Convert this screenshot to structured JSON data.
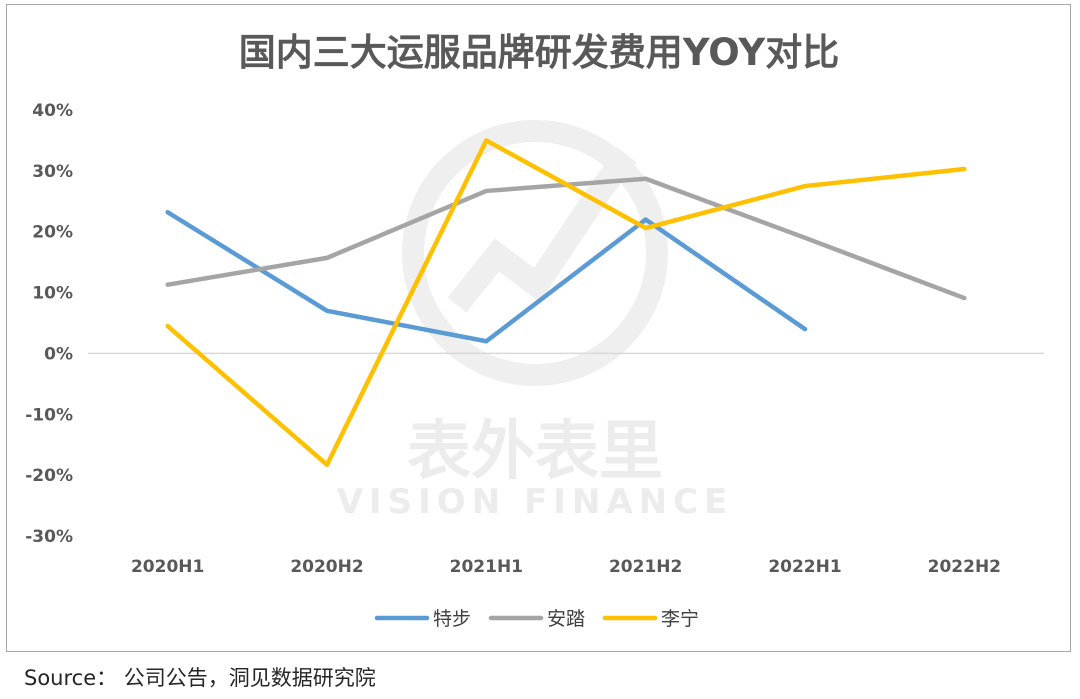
{
  "chart_data": {
    "type": "line",
    "title": "国内三大运服品牌研发费用YOY对比",
    "categories": [
      "2020H1",
      "2020H2",
      "2021H1",
      "2021H2",
      "2022H1",
      "2022H2"
    ],
    "ylim": [
      -30,
      40
    ],
    "ytick_labels": [
      "40%",
      "30%",
      "20%",
      "10%",
      "0%",
      "-10%",
      "-20%",
      "-30%"
    ],
    "ytick_values": [
      40,
      30,
      20,
      10,
      0,
      -10,
      -20,
      -30
    ],
    "grid": false,
    "legend_position": "bottom",
    "series": [
      {
        "name": "特步",
        "color": "#5b9bd5",
        "values": [
          23.2,
          7.0,
          2.0,
          22.0,
          4.0,
          null
        ]
      },
      {
        "name": "安踏",
        "color": "#a5a5a5",
        "values": [
          11.3,
          15.7,
          26.7,
          28.7,
          19.0,
          9.1
        ]
      },
      {
        "name": "李宁",
        "color": "#ffc000",
        "values": [
          4.5,
          -18.3,
          35.0,
          20.6,
          27.5,
          30.3
        ]
      }
    ]
  },
  "watermark": {
    "text": "表外表里",
    "subtext": "VISION FINANCE"
  },
  "source": "Source：  公司公告，洞见数据研究院"
}
